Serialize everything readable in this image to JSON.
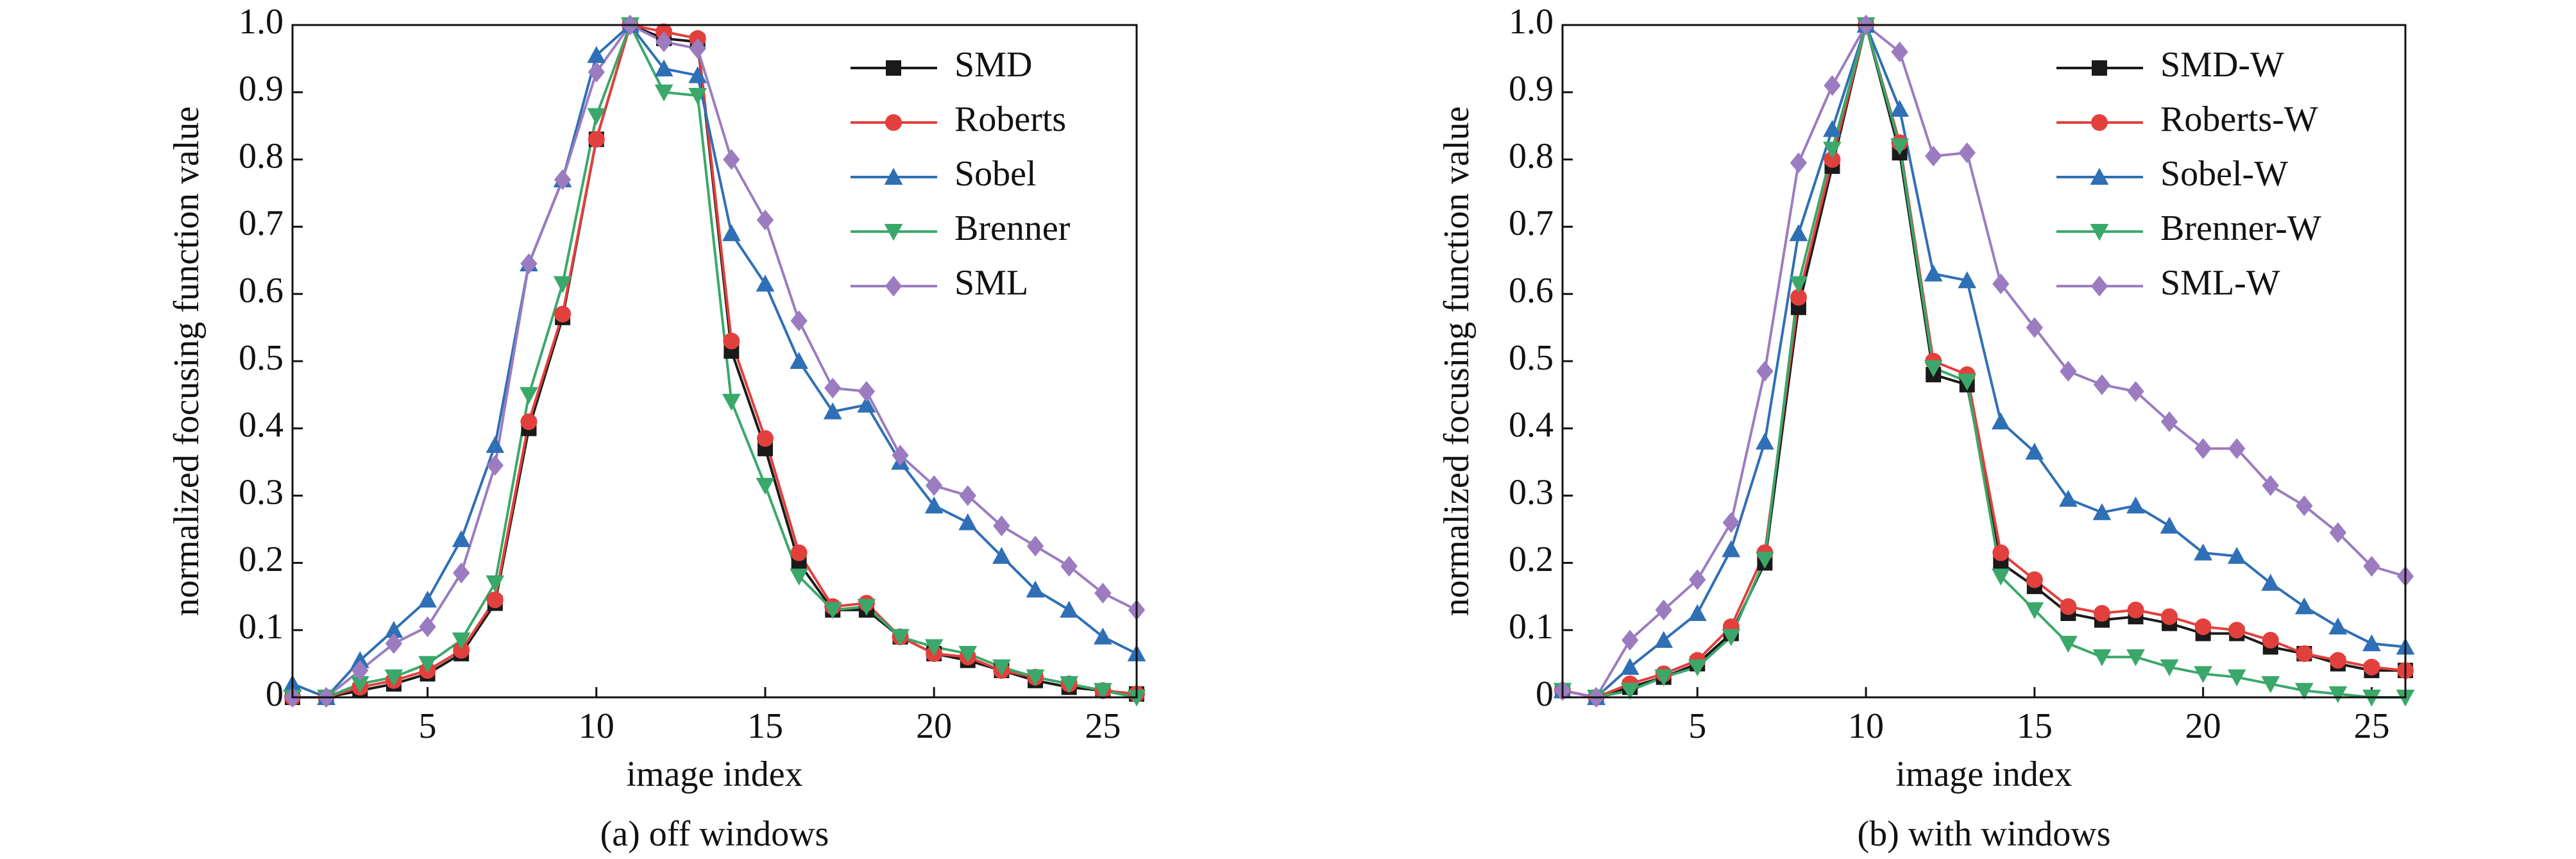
{
  "chart_data": [
    {
      "type": "line",
      "ylabel": "normalized focusing function value",
      "xlabel": "image index",
      "caption": "(a) off windows",
      "x": [
        1,
        2,
        3,
        4,
        5,
        6,
        7,
        8,
        9,
        10,
        11,
        12,
        13,
        14,
        15,
        16,
        17,
        18,
        19,
        20,
        21,
        22,
        23,
        24,
        25,
        26
      ],
      "xlim": [
        1,
        26
      ],
      "xticks": [
        5,
        10,
        15,
        20,
        25
      ],
      "ylim": [
        0,
        1
      ],
      "yticks": [
        0,
        0.1,
        0.2,
        0.3,
        0.4,
        0.5,
        0.6,
        0.7,
        0.8,
        0.9,
        {
          "value": 1,
          "label": "1.0"
        }
      ],
      "legend": "upper right",
      "series": [
        {
          "name": "SMD",
          "color": "#1a1a1a",
          "marker": "square",
          "values": [
            0,
            0,
            0.01,
            0.02,
            0.035,
            0.065,
            0.14,
            0.4,
            0.565,
            0.83,
            1.0,
            0.98,
            0.975,
            0.515,
            0.37,
            0.2,
            0.13,
            0.13,
            0.09,
            0.065,
            0.055,
            0.04,
            0.025,
            0.015,
            0.01,
            0.005
          ]
        },
        {
          "name": "Roberts",
          "color": "#e2403d",
          "marker": "circle",
          "values": [
            0,
            0,
            0.015,
            0.025,
            0.04,
            0.07,
            0.145,
            0.41,
            0.57,
            0.83,
            1.0,
            0.99,
            0.98,
            0.53,
            0.385,
            0.215,
            0.135,
            0.14,
            0.09,
            0.065,
            0.06,
            0.04,
            0.03,
            0.02,
            0.01,
            0.005
          ]
        },
        {
          "name": "Sobel",
          "color": "#2f6fb5",
          "marker": "triangle-up",
          "values": [
            0.02,
            0,
            0.055,
            0.1,
            0.145,
            0.235,
            0.375,
            0.645,
            0.77,
            0.955,
            1.0,
            0.935,
            0.925,
            0.69,
            0.615,
            0.5,
            0.425,
            0.435,
            0.35,
            0.285,
            0.26,
            0.21,
            0.16,
            0.13,
            0.09,
            0.065
          ]
        },
        {
          "name": "Brenner",
          "color": "#3aa86a",
          "marker": "triangle-down",
          "values": [
            0,
            0,
            0.02,
            0.03,
            0.05,
            0.085,
            0.17,
            0.45,
            0.615,
            0.865,
            1.0,
            0.9,
            0.895,
            0.44,
            0.315,
            0.18,
            0.13,
            0.135,
            0.09,
            0.075,
            0.065,
            0.045,
            0.03,
            0.02,
            0.01,
            0
          ]
        },
        {
          "name": "SML",
          "color": "#9b7cc0",
          "marker": "diamond",
          "values": [
            0,
            0,
            0.04,
            0.08,
            0.105,
            0.185,
            0.345,
            0.645,
            0.77,
            0.93,
            1.0,
            0.975,
            0.965,
            0.8,
            0.71,
            0.56,
            0.46,
            0.455,
            0.36,
            0.315,
            0.3,
            0.255,
            0.225,
            0.195,
            0.155,
            0.13
          ]
        }
      ]
    },
    {
      "type": "line",
      "ylabel": "normalized focusing function value",
      "xlabel": "image index",
      "caption": "(b) with windows",
      "x": [
        1,
        2,
        3,
        4,
        5,
        6,
        7,
        8,
        9,
        10,
        11,
        12,
        13,
        14,
        15,
        16,
        17,
        18,
        19,
        20,
        21,
        22,
        23,
        24,
        25,
        26
      ],
      "xlim": [
        1,
        26
      ],
      "xticks": [
        5,
        10,
        15,
        20,
        25
      ],
      "ylim": [
        0,
        1
      ],
      "yticks": [
        0,
        0.1,
        0.2,
        0.3,
        0.4,
        0.5,
        0.6,
        0.7,
        0.8,
        0.9,
        {
          "value": 1,
          "label": "1.0"
        }
      ],
      "legend": "upper right",
      "series": [
        {
          "name": "SMD-W",
          "color": "#1a1a1a",
          "marker": "square",
          "values": [
            0.01,
            0,
            0.015,
            0.03,
            0.05,
            0.095,
            0.2,
            0.58,
            0.79,
            1.0,
            0.81,
            0.48,
            0.465,
            0.2,
            0.165,
            0.125,
            0.115,
            0.12,
            0.11,
            0.095,
            0.095,
            0.075,
            0.065,
            0.05,
            0.04,
            0.04
          ]
        },
        {
          "name": "Roberts-W",
          "color": "#e2403d",
          "marker": "circle",
          "values": [
            0.01,
            0,
            0.02,
            0.035,
            0.055,
            0.105,
            0.215,
            0.595,
            0.8,
            1.0,
            0.825,
            0.5,
            0.48,
            0.215,
            0.175,
            0.135,
            0.125,
            0.13,
            0.12,
            0.105,
            0.1,
            0.085,
            0.065,
            0.055,
            0.045,
            0.04
          ]
        },
        {
          "name": "Sobel-W",
          "color": "#2f6fb5",
          "marker": "triangle-up",
          "values": [
            0.01,
            0,
            0.045,
            0.085,
            0.125,
            0.22,
            0.38,
            0.69,
            0.845,
            1.0,
            0.875,
            0.63,
            0.62,
            0.41,
            0.365,
            0.295,
            0.275,
            0.285,
            0.255,
            0.215,
            0.21,
            0.17,
            0.135,
            0.105,
            0.08,
            0.075
          ]
        },
        {
          "name": "Brenner-W",
          "color": "#3aa86a",
          "marker": "triangle-down",
          "values": [
            0.01,
            0,
            0.01,
            0.03,
            0.045,
            0.09,
            0.205,
            0.615,
            0.815,
            1.0,
            0.82,
            0.49,
            0.47,
            0.18,
            0.13,
            0.08,
            0.06,
            0.06,
            0.045,
            0.035,
            0.03,
            0.02,
            0.01,
            0.005,
            0,
            0
          ]
        },
        {
          "name": "SML-W",
          "color": "#9b7cc0",
          "marker": "diamond",
          "values": [
            0.01,
            0,
            0.085,
            0.13,
            0.175,
            0.26,
            0.485,
            0.795,
            0.91,
            1.0,
            0.96,
            0.805,
            0.81,
            0.615,
            0.55,
            0.485,
            0.465,
            0.455,
            0.41,
            0.37,
            0.37,
            0.315,
            0.285,
            0.245,
            0.195,
            0.18
          ]
        }
      ]
    }
  ]
}
